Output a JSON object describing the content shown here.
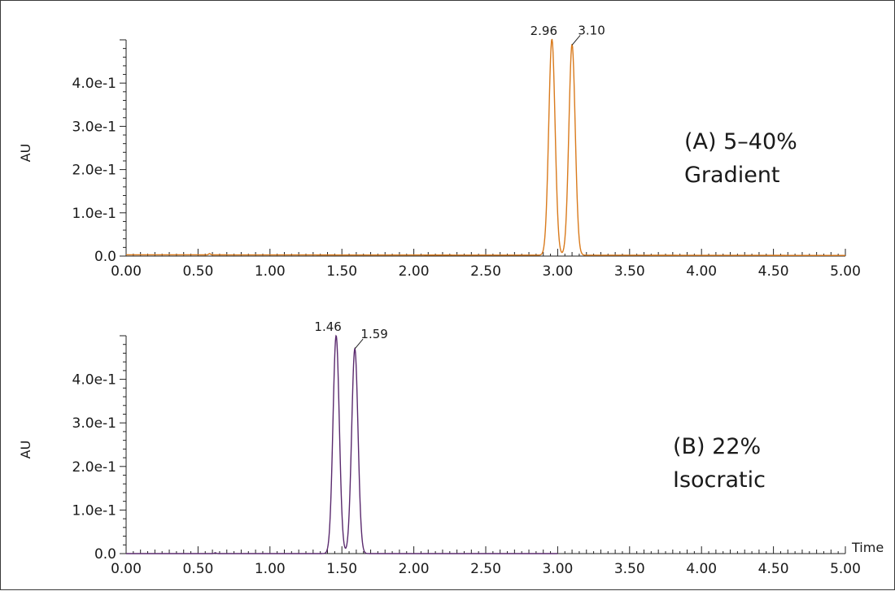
{
  "chart_data": [
    {
      "type": "line",
      "name": "panel-a",
      "ylabel": "AU",
      "xlabel": "",
      "xlim": [
        0,
        5
      ],
      "ylim": [
        0,
        0.5
      ],
      "x_ticks": [
        "0.00",
        "0.50",
        "1.00",
        "1.50",
        "2.00",
        "2.50",
        "3.00",
        "3.50",
        "4.00",
        "4.50",
        "5.00"
      ],
      "y_ticks": [
        "0.0",
        "1.0e-1",
        "2.0e-1",
        "3.0e-1",
        "4.0e-1"
      ],
      "annotation": [
        "(A) 5–40%",
        "Gradient"
      ],
      "color": "#d97a1c",
      "x_end": 5.0,
      "baseline": 0.003,
      "peaks": [
        {
          "label": "2.96",
          "rt": 2.96,
          "height": 0.5
        },
        {
          "label": "3.10",
          "rt": 3.1,
          "height": 0.488
        }
      ],
      "artifacts": [
        {
          "rt": 0.58,
          "height": 0.003
        }
      ]
    },
    {
      "type": "line",
      "name": "panel-b",
      "ylabel": "AU",
      "xlabel": "Time",
      "xlim": [
        0,
        5
      ],
      "ylim": [
        0,
        0.5
      ],
      "x_ticks": [
        "0.00",
        "0.50",
        "1.00",
        "1.50",
        "2.00",
        "2.50",
        "3.00",
        "3.50",
        "4.00",
        "4.50",
        "5.00"
      ],
      "y_ticks": [
        "0.0",
        "1.0e-1",
        "2.0e-1",
        "3.0e-1",
        "4.0e-1"
      ],
      "annotation": [
        "(B) 22%",
        "Isocratic"
      ],
      "color": "#5a2a6e",
      "x_end": 3.0,
      "baseline": 0.0,
      "peaks": [
        {
          "label": "1.46",
          "rt": 1.46,
          "height": 0.5
        },
        {
          "label": "1.59",
          "rt": 1.59,
          "height": 0.47
        }
      ],
      "artifacts": [
        {
          "rt": 0.62,
          "height": 0.002
        }
      ]
    }
  ]
}
